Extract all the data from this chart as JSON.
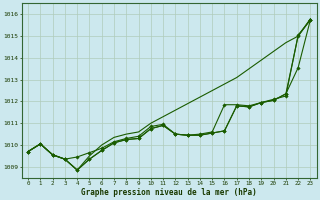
{
  "title": "Graphe pression niveau de la mer (hPa)",
  "xlabel_hours": [
    0,
    1,
    2,
    3,
    4,
    5,
    6,
    7,
    8,
    9,
    10,
    11,
    12,
    13,
    14,
    15,
    16,
    17,
    18,
    19,
    20,
    21,
    22,
    23
  ],
  "ylim": [
    1008.5,
    1016.5
  ],
  "yticks": [
    1009,
    1010,
    1011,
    1012,
    1013,
    1014,
    1015,
    1016
  ],
  "bg_color": "#cce8ee",
  "grid_color": "#b0ccbb",
  "line_color": "#1a5c00",
  "marker_color": "#1a5c00",
  "series_smooth": [
    1009.7,
    1010.05,
    1009.55,
    1009.35,
    1008.85,
    1009.5,
    1010.0,
    1010.35,
    1010.5,
    1010.6,
    1011.0,
    1011.3,
    1011.6,
    1011.9,
    1012.2,
    1012.5,
    1012.8,
    1013.1,
    1013.5,
    1013.9,
    1014.3,
    1014.7,
    1015.0,
    1015.8
  ],
  "series_marker1": [
    1009.7,
    1010.05,
    1009.55,
    1009.35,
    1008.85,
    1009.35,
    1009.75,
    1010.1,
    1010.25,
    1010.3,
    1010.75,
    1010.9,
    1010.5,
    1010.45,
    1010.45,
    1010.55,
    1010.65,
    1011.8,
    1011.75,
    1011.95,
    1012.05,
    1012.35,
    1013.55,
    1015.75
  ],
  "series_marker2": [
    1009.7,
    1010.05,
    1009.55,
    1009.35,
    1009.45,
    1009.65,
    1009.85,
    1010.15,
    1010.3,
    1010.4,
    1010.85,
    1010.95,
    1010.5,
    1010.45,
    1010.5,
    1010.6,
    1011.85,
    1011.85,
    1011.8,
    1011.95,
    1012.1,
    1012.25,
    1015.05,
    1015.75
  ],
  "series_marker3": [
    1009.7,
    1010.05,
    1009.55,
    1009.35,
    1008.85,
    1009.35,
    1009.75,
    1010.1,
    1010.25,
    1010.3,
    1010.75,
    1010.9,
    1010.5,
    1010.45,
    1010.45,
    1010.55,
    1010.65,
    1011.8,
    1011.75,
    1011.95,
    1012.05,
    1012.35,
    1015.0,
    1015.75
  ]
}
